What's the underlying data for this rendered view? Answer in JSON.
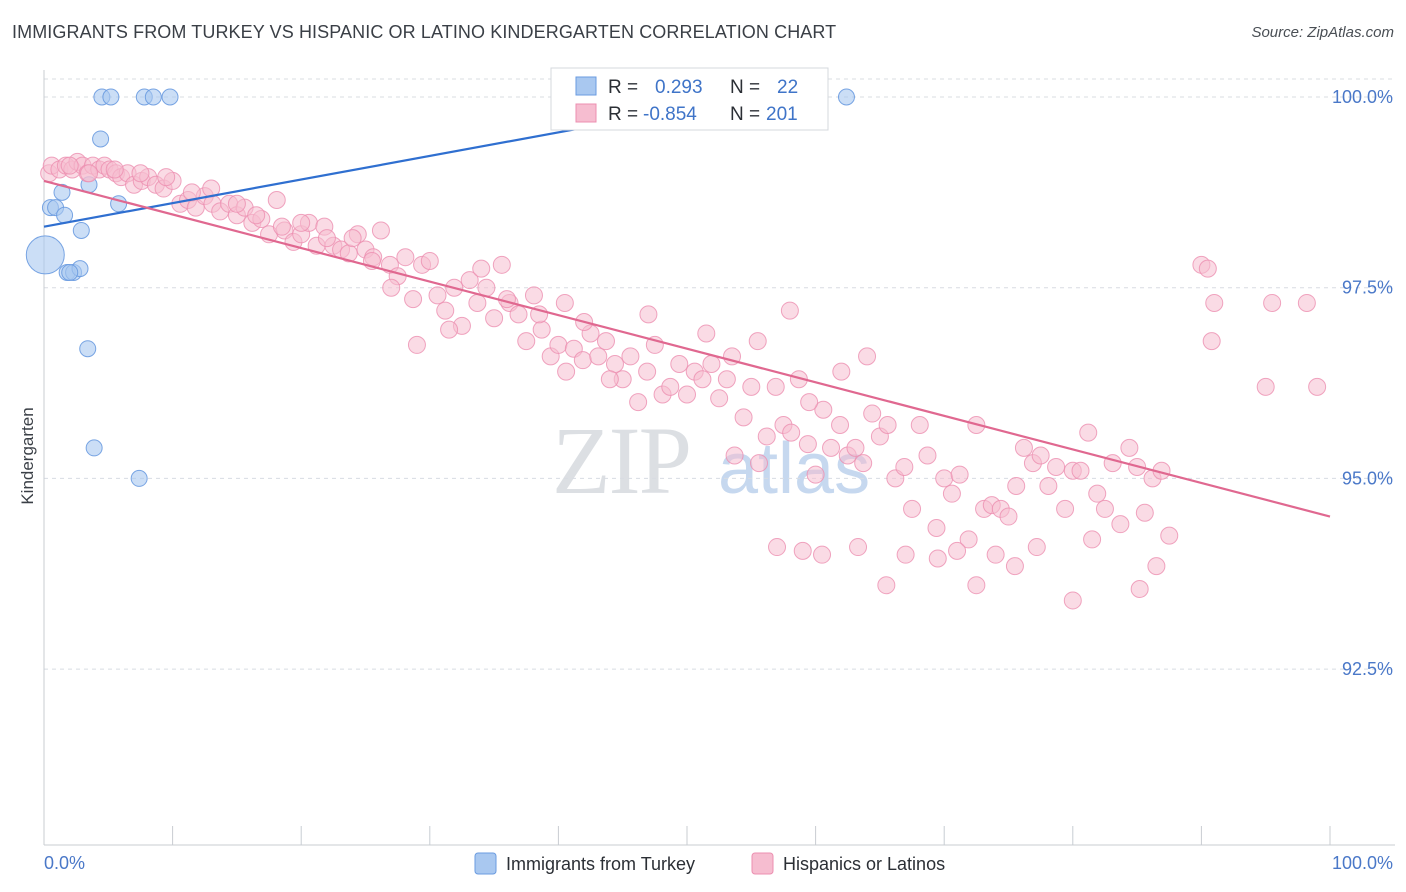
{
  "title": "IMMIGRANTS FROM TURKEY VS HISPANIC OR LATINO KINDERGARTEN CORRELATION CHART",
  "source": "Source: ZipAtlas.com",
  "watermark": {
    "zip": "ZIP",
    "atlas": "atlas"
  },
  "colors": {
    "blue_fill": "#a9c8f0",
    "blue_stroke": "#6a9be0",
    "blue_line": "#2f6fd0",
    "pink_fill": "#f6bdd0",
    "pink_stroke": "#ec8fb0",
    "pink_line": "#e06890",
    "grid": "#d8dce2",
    "axis": "#c8ccd2",
    "tick_text": "#4a78c8"
  },
  "stats": {
    "row1": {
      "r_label": "R =",
      "r_value": "0.293",
      "n_label": "N =",
      "n_value": "22"
    },
    "row2": {
      "r_label": "R =",
      "r_value": "-0.854",
      "n_label": "N =",
      "n_value": "201"
    }
  },
  "chart_data": {
    "type": "scatter",
    "title": "IMMIGRANTS FROM TURKEY VS HISPANIC OR LATINO KINDERGARTEN CORRELATION CHART",
    "xlabel": "",
    "ylabel": "Kindergarten",
    "xlim": [
      0,
      100
    ],
    "ylim": [
      90.0,
      100.25
    ],
    "x_tick_labels": {
      "left": "0.0%",
      "right": "100.0%"
    },
    "y_ticks": [
      {
        "value": 100.0,
        "label": "100.0%"
      },
      {
        "value": 97.5,
        "label": "97.5%"
      },
      {
        "value": 95.0,
        "label": "95.0%"
      },
      {
        "value": 92.5,
        "label": "92.5%"
      }
    ],
    "legend": {
      "position": "bottom",
      "entries": [
        "Immigrants from Turkey",
        "Hispanics or Latinos"
      ]
    },
    "series": [
      {
        "name": "Immigrants from Turkey",
        "color": "blue",
        "r": 0.293,
        "n": 22,
        "trend": {
          "x": [
            0,
            55
          ],
          "y": [
            98.3,
            100.0
          ]
        },
        "points": [
          [
            4.5,
            100.0
          ],
          [
            5.2,
            100.0
          ],
          [
            7.8,
            100.0
          ],
          [
            8.5,
            100.0
          ],
          [
            9.8,
            100.0
          ],
          [
            62.4,
            100.0
          ],
          [
            4.4,
            99.45
          ],
          [
            0.5,
            98.55
          ],
          [
            0.9,
            98.55
          ],
          [
            1.4,
            98.75
          ],
          [
            3.5,
            98.85
          ],
          [
            1.6,
            98.45
          ],
          [
            5.8,
            98.6
          ],
          [
            2.9,
            98.25
          ],
          [
            0.1,
            97.93
          ],
          [
            1.8,
            97.7
          ],
          [
            2.3,
            97.7
          ],
          [
            2.8,
            97.75
          ],
          [
            3.4,
            96.7
          ],
          [
            3.9,
            95.4
          ],
          [
            7.4,
            95.0
          ],
          [
            2.0,
            97.7
          ]
        ]
      },
      {
        "name": "Hispanics or Latinos",
        "color": "pink",
        "r": -0.854,
        "n": 201,
        "trend": {
          "x": [
            0,
            100
          ],
          "y": [
            98.9,
            94.5
          ]
        },
        "points": [
          [
            0.4,
            99.0
          ],
          [
            0.6,
            99.1
          ],
          [
            1.2,
            99.05
          ],
          [
            1.7,
            99.1
          ],
          [
            2.2,
            99.05
          ],
          [
            2.6,
            99.15
          ],
          [
            3.0,
            99.1
          ],
          [
            3.4,
            99.0
          ],
          [
            3.8,
            99.1
          ],
          [
            4.3,
            99.05
          ],
          [
            4.7,
            99.1
          ],
          [
            5.1,
            99.05
          ],
          [
            5.6,
            99.0
          ],
          [
            6.0,
            98.95
          ],
          [
            6.5,
            99.0
          ],
          [
            7.0,
            98.85
          ],
          [
            7.6,
            98.9
          ],
          [
            8.1,
            98.95
          ],
          [
            8.7,
            98.85
          ],
          [
            9.3,
            98.8
          ],
          [
            10.0,
            98.9
          ],
          [
            10.6,
            98.6
          ],
          [
            11.2,
            98.65
          ],
          [
            11.8,
            98.55
          ],
          [
            12.5,
            98.7
          ],
          [
            13.1,
            98.6
          ],
          [
            13.7,
            98.5
          ],
          [
            14.4,
            98.6
          ],
          [
            15.0,
            98.45
          ],
          [
            15.6,
            98.55
          ],
          [
            16.2,
            98.35
          ],
          [
            16.9,
            98.4
          ],
          [
            17.5,
            98.2
          ],
          [
            18.1,
            98.65
          ],
          [
            18.7,
            98.25
          ],
          [
            19.4,
            98.1
          ],
          [
            20.0,
            98.2
          ],
          [
            20.6,
            98.35
          ],
          [
            21.2,
            98.05
          ],
          [
            21.8,
            98.3
          ],
          [
            22.5,
            98.05
          ],
          [
            23.1,
            98.0
          ],
          [
            23.7,
            97.95
          ],
          [
            24.4,
            98.2
          ],
          [
            25.0,
            98.0
          ],
          [
            25.6,
            97.9
          ],
          [
            26.2,
            98.25
          ],
          [
            26.9,
            97.8
          ],
          [
            27.5,
            97.65
          ],
          [
            28.1,
            97.9
          ],
          [
            28.7,
            97.35
          ],
          [
            29.4,
            97.8
          ],
          [
            30.0,
            97.85
          ],
          [
            30.6,
            97.4
          ],
          [
            31.2,
            97.2
          ],
          [
            31.9,
            97.5
          ],
          [
            32.5,
            97.0
          ],
          [
            33.1,
            97.6
          ],
          [
            33.7,
            97.3
          ],
          [
            34.4,
            97.5
          ],
          [
            35.0,
            97.1
          ],
          [
            35.6,
            97.8
          ],
          [
            36.2,
            97.3
          ],
          [
            36.9,
            97.15
          ],
          [
            37.5,
            96.8
          ],
          [
            38.1,
            97.4
          ],
          [
            38.7,
            96.95
          ],
          [
            39.4,
            96.6
          ],
          [
            40.0,
            96.75
          ],
          [
            40.6,
            96.4
          ],
          [
            41.2,
            96.7
          ],
          [
            41.9,
            96.55
          ],
          [
            42.5,
            96.9
          ],
          [
            43.1,
            96.6
          ],
          [
            43.7,
            96.8
          ],
          [
            44.4,
            96.5
          ],
          [
            45.0,
            96.3
          ],
          [
            45.6,
            96.6
          ],
          [
            46.2,
            96.0
          ],
          [
            46.9,
            96.4
          ],
          [
            47.5,
            96.75
          ],
          [
            48.1,
            96.1
          ],
          [
            48.7,
            96.2
          ],
          [
            49.4,
            96.5
          ],
          [
            50.0,
            96.1
          ],
          [
            50.6,
            96.4
          ],
          [
            51.2,
            96.3
          ],
          [
            51.9,
            96.5
          ],
          [
            52.5,
            96.05
          ],
          [
            53.1,
            96.3
          ],
          [
            53.7,
            95.3
          ],
          [
            54.4,
            95.8
          ],
          [
            55.0,
            96.2
          ],
          [
            55.6,
            95.2
          ],
          [
            56.2,
            95.55
          ],
          [
            56.9,
            96.2
          ],
          [
            57.5,
            95.7
          ],
          [
            58.1,
            95.6
          ],
          [
            58.7,
            96.3
          ],
          [
            59.4,
            95.45
          ],
          [
            60.0,
            95.05
          ],
          [
            60.6,
            95.9
          ],
          [
            61.2,
            95.4
          ],
          [
            61.9,
            95.7
          ],
          [
            62.5,
            95.3
          ],
          [
            63.1,
            95.4
          ],
          [
            63.7,
            95.2
          ],
          [
            64.4,
            95.85
          ],
          [
            65.0,
            95.55
          ],
          [
            65.6,
            95.7
          ],
          [
            66.2,
            95.0
          ],
          [
            66.9,
            95.15
          ],
          [
            67.5,
            94.6
          ],
          [
            68.1,
            95.7
          ],
          [
            68.7,
            95.3
          ],
          [
            69.4,
            94.35
          ],
          [
            70.0,
            95.0
          ],
          [
            70.6,
            94.8
          ],
          [
            71.2,
            95.05
          ],
          [
            71.9,
            94.2
          ],
          [
            72.5,
            95.7
          ],
          [
            73.1,
            94.6
          ],
          [
            73.7,
            94.65
          ],
          [
            74.4,
            94.6
          ],
          [
            75.0,
            94.5
          ],
          [
            75.6,
            94.9
          ],
          [
            76.2,
            95.4
          ],
          [
            76.9,
            95.2
          ],
          [
            77.5,
            95.3
          ],
          [
            78.1,
            94.9
          ],
          [
            78.7,
            95.15
          ],
          [
            79.4,
            94.6
          ],
          [
            80.0,
            95.1
          ],
          [
            80.6,
            95.1
          ],
          [
            81.2,
            95.6
          ],
          [
            81.9,
            94.8
          ],
          [
            82.5,
            94.6
          ],
          [
            83.1,
            95.2
          ],
          [
            83.7,
            94.4
          ],
          [
            84.4,
            95.4
          ],
          [
            85.0,
            95.15
          ],
          [
            85.6,
            94.55
          ],
          [
            86.2,
            95.0
          ],
          [
            86.9,
            95.1
          ],
          [
            87.5,
            94.25
          ],
          [
            90.0,
            97.8
          ],
          [
            90.5,
            97.75
          ],
          [
            91.0,
            97.3
          ],
          [
            90.8,
            96.8
          ],
          [
            95.0,
            96.2
          ],
          [
            95.5,
            97.3
          ],
          [
            98.2,
            97.3
          ],
          [
            99.0,
            96.2
          ],
          [
            65.5,
            93.6
          ],
          [
            67.0,
            94.0
          ],
          [
            69.5,
            93.95
          ],
          [
            72.5,
            93.6
          ],
          [
            75.5,
            93.85
          ],
          [
            80.0,
            93.4
          ],
          [
            85.2,
            93.55
          ],
          [
            86.5,
            93.85
          ],
          [
            81.5,
            94.2
          ],
          [
            77.2,
            94.1
          ],
          [
            74.0,
            94.0
          ],
          [
            71.0,
            94.05
          ],
          [
            63.3,
            94.1
          ],
          [
            60.5,
            94.0
          ],
          [
            59.0,
            94.05
          ],
          [
            57.0,
            94.1
          ],
          [
            64.0,
            96.6
          ],
          [
            62.0,
            96.4
          ],
          [
            59.5,
            96.0
          ],
          [
            58.0,
            97.2
          ],
          [
            55.5,
            96.8
          ],
          [
            53.5,
            96.6
          ],
          [
            51.5,
            96.9
          ],
          [
            47.0,
            97.15
          ],
          [
            44.0,
            96.3
          ],
          [
            42.0,
            97.05
          ],
          [
            40.5,
            97.3
          ],
          [
            38.5,
            97.15
          ],
          [
            36.0,
            97.35
          ],
          [
            34.0,
            97.75
          ],
          [
            31.5,
            96.95
          ],
          [
            29.0,
            96.75
          ],
          [
            27.0,
            97.5
          ],
          [
            25.5,
            97.85
          ],
          [
            24.0,
            98.15
          ],
          [
            22.0,
            98.15
          ],
          [
            20.0,
            98.35
          ],
          [
            18.5,
            98.3
          ],
          [
            16.5,
            98.45
          ],
          [
            15.0,
            98.6
          ],
          [
            13.0,
            98.8
          ],
          [
            11.5,
            98.75
          ],
          [
            9.5,
            98.95
          ],
          [
            7.5,
            99.0
          ],
          [
            5.5,
            99.05
          ],
          [
            3.5,
            99.0
          ],
          [
            2.0,
            99.1
          ]
        ]
      }
    ]
  }
}
